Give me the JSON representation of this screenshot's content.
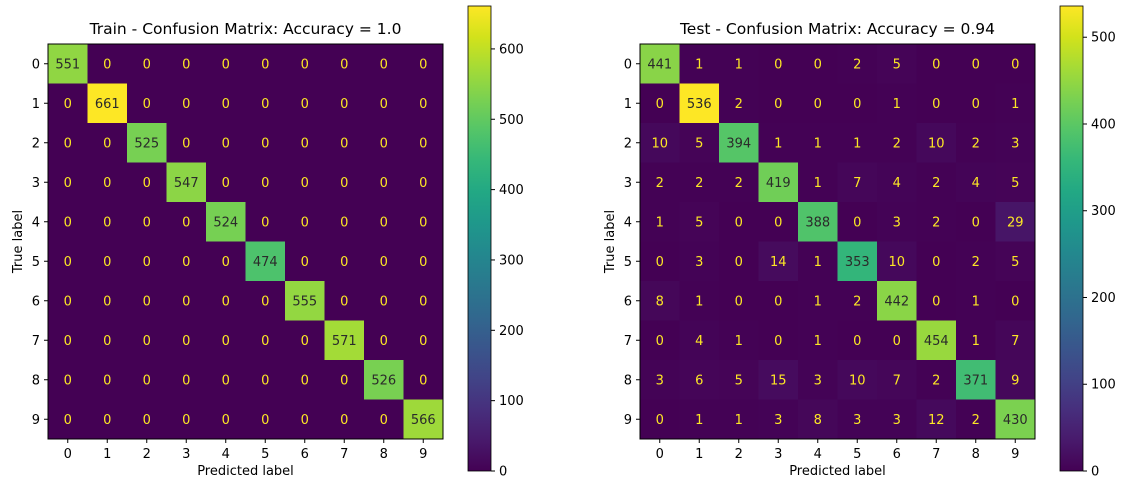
{
  "chart_data": [
    {
      "type": "heatmap",
      "title": "Train - Confusion Matrix: Accuracy = 1.0",
      "xlabel": "Predicted label",
      "ylabel": "True label",
      "x_ticks": [
        "0",
        "1",
        "2",
        "3",
        "4",
        "5",
        "6",
        "7",
        "8",
        "9"
      ],
      "y_ticks": [
        "0",
        "1",
        "2",
        "3",
        "4",
        "5",
        "6",
        "7",
        "8",
        "9"
      ],
      "colormap": "viridis",
      "vmin": 0,
      "vmax": 661,
      "colorbar_ticks": [
        0,
        100,
        200,
        300,
        400,
        500,
        600
      ],
      "matrix": [
        [
          551,
          0,
          0,
          0,
          0,
          0,
          0,
          0,
          0,
          0
        ],
        [
          0,
          661,
          0,
          0,
          0,
          0,
          0,
          0,
          0,
          0
        ],
        [
          0,
          0,
          525,
          0,
          0,
          0,
          0,
          0,
          0,
          0
        ],
        [
          0,
          0,
          0,
          547,
          0,
          0,
          0,
          0,
          0,
          0
        ],
        [
          0,
          0,
          0,
          0,
          524,
          0,
          0,
          0,
          0,
          0
        ],
        [
          0,
          0,
          0,
          0,
          0,
          474,
          0,
          0,
          0,
          0
        ],
        [
          0,
          0,
          0,
          0,
          0,
          0,
          555,
          0,
          0,
          0
        ],
        [
          0,
          0,
          0,
          0,
          0,
          0,
          0,
          571,
          0,
          0
        ],
        [
          0,
          0,
          0,
          0,
          0,
          0,
          0,
          0,
          526,
          0
        ],
        [
          0,
          0,
          0,
          0,
          0,
          0,
          0,
          0,
          0,
          566
        ]
      ]
    },
    {
      "type": "heatmap",
      "title": "Test - Confusion Matrix: Accuracy = 0.94",
      "xlabel": "Predicted label",
      "ylabel": "True label",
      "x_ticks": [
        "0",
        "1",
        "2",
        "3",
        "4",
        "5",
        "6",
        "7",
        "8",
        "9"
      ],
      "y_ticks": [
        "0",
        "1",
        "2",
        "3",
        "4",
        "5",
        "6",
        "7",
        "8",
        "9"
      ],
      "colormap": "viridis",
      "vmin": 0,
      "vmax": 536,
      "colorbar_ticks": [
        0,
        100,
        200,
        300,
        400,
        500
      ],
      "matrix": [
        [
          441,
          1,
          1,
          0,
          0,
          2,
          5,
          0,
          0,
          0
        ],
        [
          0,
          536,
          2,
          0,
          0,
          0,
          1,
          0,
          0,
          1
        ],
        [
          10,
          5,
          394,
          1,
          1,
          1,
          2,
          10,
          2,
          3
        ],
        [
          2,
          2,
          2,
          419,
          1,
          7,
          4,
          2,
          4,
          5
        ],
        [
          1,
          5,
          0,
          0,
          388,
          0,
          3,
          2,
          0,
          29
        ],
        [
          0,
          3,
          0,
          14,
          1,
          353,
          10,
          0,
          2,
          5
        ],
        [
          8,
          1,
          0,
          0,
          1,
          2,
          442,
          0,
          1,
          0
        ],
        [
          0,
          4,
          1,
          0,
          1,
          0,
          0,
          454,
          1,
          7
        ],
        [
          3,
          6,
          5,
          15,
          3,
          10,
          7,
          2,
          371,
          9
        ],
        [
          0,
          1,
          1,
          3,
          8,
          3,
          3,
          12,
          2,
          430
        ]
      ]
    }
  ]
}
